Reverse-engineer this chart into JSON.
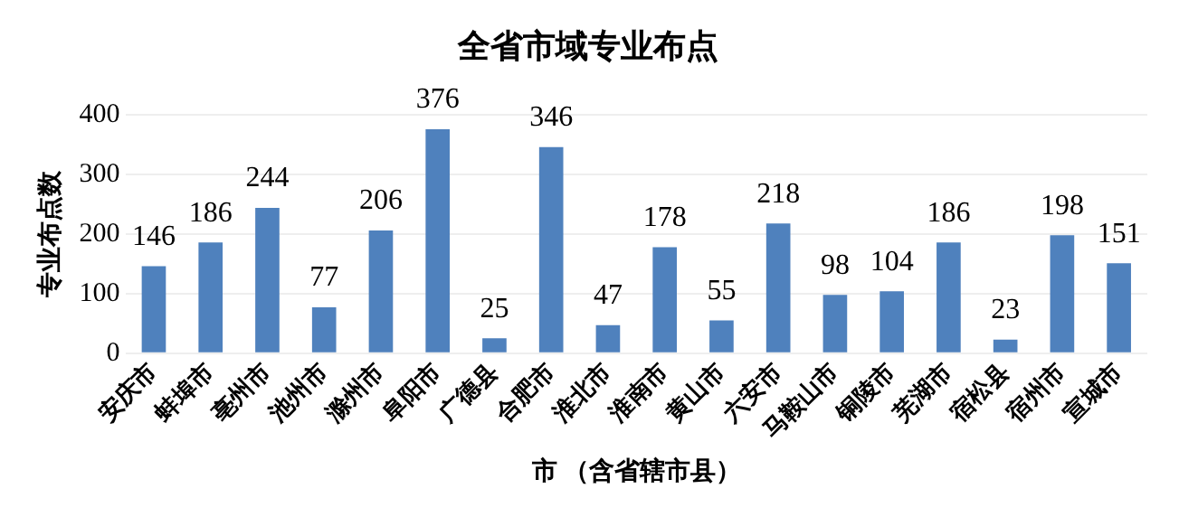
{
  "chart_data": {
    "type": "bar",
    "title": "全省市域专业布点",
    "xlabel": "市 （含省辖市县）",
    "ylabel": "专业布点数",
    "categories": [
      "安庆市",
      "蚌埠市",
      "亳州市",
      "池州市",
      "滁州市",
      "阜阳市",
      "广德县",
      "合肥市",
      "淮北市",
      "淮南市",
      "黄山市",
      "六安市",
      "马鞍山市",
      "铜陵市",
      "芜湖市",
      "宿松县",
      "宿州市",
      "宣城市"
    ],
    "values": [
      146,
      186,
      244,
      77,
      206,
      376,
      25,
      346,
      47,
      178,
      55,
      218,
      98,
      104,
      186,
      23,
      198,
      151
    ],
    "color": "#4f81bd",
    "ylim": [
      0,
      400
    ],
    "yticks": [
      0,
      100,
      200,
      300,
      400
    ],
    "grid": "y",
    "data_labels": true,
    "legend": false
  }
}
